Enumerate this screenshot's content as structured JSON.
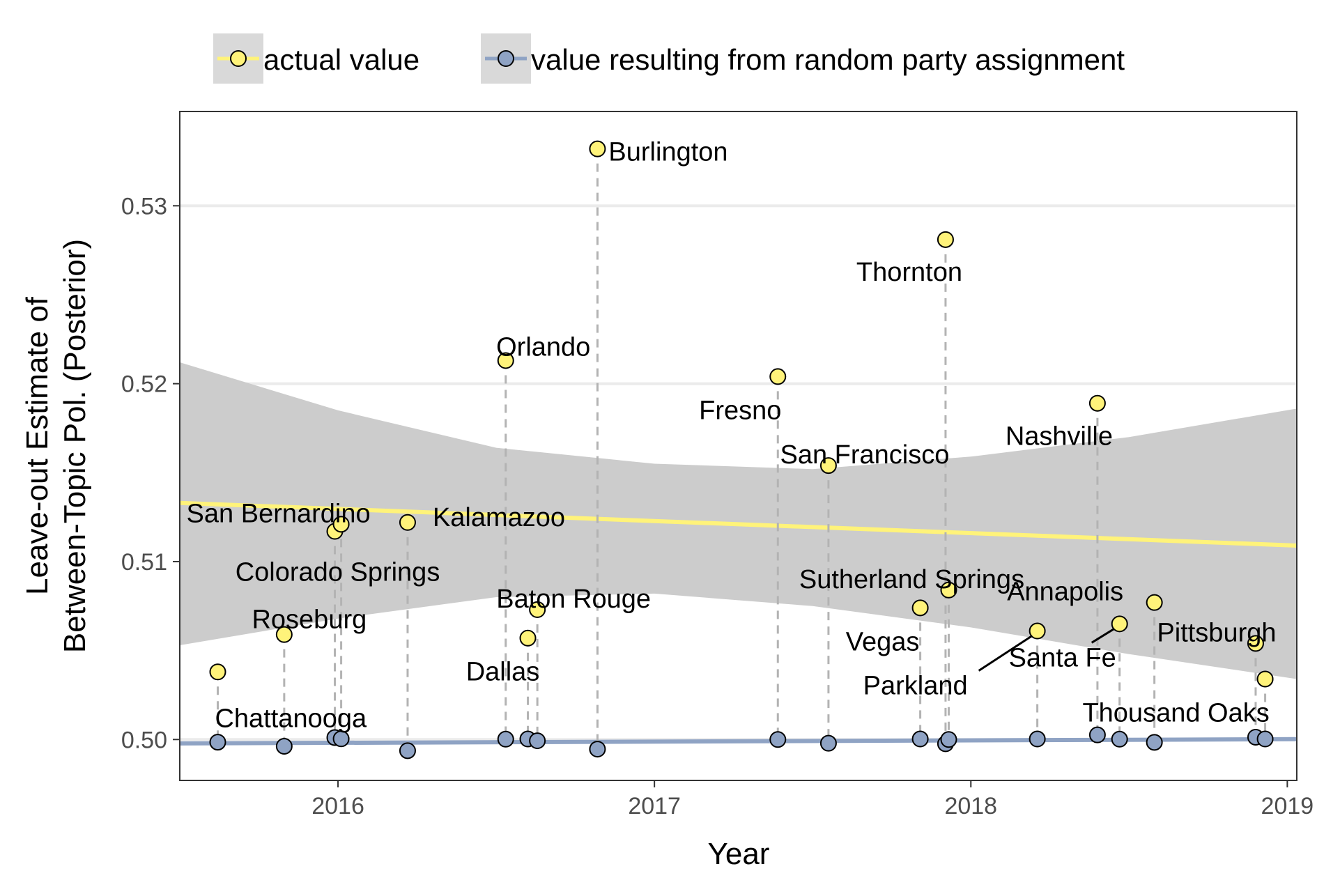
{
  "chart_data": {
    "type": "scatter",
    "xlabel": "Year",
    "ylabel_line1": "Leave-out Estimate of",
    "ylabel_line2": "Between-Topic Pol. (Posterior)",
    "xlim": [
      2015.5,
      2019.03
    ],
    "ylim": [
      0.4977,
      0.5353
    ],
    "x_ticks": [
      {
        "value": 2016,
        "label": "2016"
      },
      {
        "value": 2017,
        "label": "2017"
      },
      {
        "value": 2018,
        "label": "2018"
      },
      {
        "value": 2019,
        "label": "2019"
      }
    ],
    "y_ticks": [
      {
        "value": 0.5,
        "label": "0.50"
      },
      {
        "value": 0.51,
        "label": "0.51"
      },
      {
        "value": 0.52,
        "label": "0.52"
      },
      {
        "value": 0.53,
        "label": "0.53"
      }
    ],
    "grid": true,
    "legend_position": "top",
    "legend": [
      {
        "label": "actual value",
        "color": "#fff37a"
      },
      {
        "label": "value resulting from random party assignment",
        "color": "#8fa3c4"
      }
    ],
    "colors": {
      "actual": "#fff37a",
      "random": "#8fa3c4",
      "band": "#cccccc",
      "actual_trend": "#fff37a",
      "random_trend": "#8fa3c4",
      "drop_line": "#b3b3b3"
    },
    "actual_trend": {
      "x": [
        2015.5,
        2019.03
      ],
      "y": [
        0.5133,
        0.5109
      ]
    },
    "actual_band": {
      "x": [
        2015.5,
        2016.0,
        2016.5,
        2017.0,
        2017.5,
        2018.0,
        2018.5,
        2019.03
      ],
      "upper": [
        0.5212,
        0.5185,
        0.5164,
        0.5155,
        0.5152,
        0.5159,
        0.517,
        0.5186
      ],
      "lower": [
        0.5053,
        0.5068,
        0.508,
        0.5082,
        0.5075,
        0.5063,
        0.5048,
        0.5034
      ]
    },
    "random_trend": {
      "x": [
        2015.5,
        2019.03
      ],
      "y": [
        0.49978,
        0.50002
      ]
    },
    "series": [
      {
        "name": "actual value",
        "points": [
          {
            "label": "Chattanooga",
            "x": 2015.62,
            "y": 0.5038
          },
          {
            "label": "Roseburg",
            "x": 2015.83,
            "y": 0.5059
          },
          {
            "label": "Colorado Springs",
            "x": 2015.99,
            "y": 0.5117
          },
          {
            "label": "San Bernardino",
            "x": 2016.01,
            "y": 0.5121
          },
          {
            "label": "Kalamazoo",
            "x": 2016.22,
            "y": 0.5122
          },
          {
            "label": "Orlando",
            "x": 2016.53,
            "y": 0.5213
          },
          {
            "label": "Dallas",
            "x": 2016.6,
            "y": 0.5057
          },
          {
            "label": "Baton Rouge",
            "x": 2016.63,
            "y": 0.5073
          },
          {
            "label": "Burlington",
            "x": 2016.82,
            "y": 0.5332
          },
          {
            "label": "Fresno",
            "x": 2017.39,
            "y": 0.5204
          },
          {
            "label": "San Francisco",
            "x": 2017.55,
            "y": 0.5154
          },
          {
            "label": "Vegas",
            "x": 2017.84,
            "y": 0.5074
          },
          {
            "label": "Thornton",
            "x": 2017.92,
            "y": 0.5281
          },
          {
            "label": "Sutherland Springs",
            "x": 2017.93,
            "y": 0.5084
          },
          {
            "label": "Parkland",
            "x": 2018.21,
            "y": 0.5061
          },
          {
            "label": "Nashville",
            "x": 2018.4,
            "y": 0.5189
          },
          {
            "label": "Santa Fe",
            "x": 2018.47,
            "y": 0.5065
          },
          {
            "label": "Annapolis",
            "x": 2018.58,
            "y": 0.5077
          },
          {
            "label": "Pittsburgh",
            "x": 2018.9,
            "y": 0.5054
          },
          {
            "label": "Thousand Oaks",
            "x": 2018.93,
            "y": 0.5034
          }
        ]
      },
      {
        "name": "value resulting from random party assignment",
        "points": [
          {
            "x": 2015.62,
            "y": 0.49985
          },
          {
            "x": 2015.83,
            "y": 0.49962
          },
          {
            "x": 2015.99,
            "y": 0.50011
          },
          {
            "x": 2016.01,
            "y": 0.50004
          },
          {
            "x": 2016.22,
            "y": 0.49937
          },
          {
            "x": 2016.53,
            "y": 0.50002
          },
          {
            "x": 2016.6,
            "y": 0.50003
          },
          {
            "x": 2016.63,
            "y": 0.49993
          },
          {
            "x": 2016.82,
            "y": 0.49946
          },
          {
            "x": 2017.39,
            "y": 0.5
          },
          {
            "x": 2017.55,
            "y": 0.49979
          },
          {
            "x": 2017.84,
            "y": 0.50003
          },
          {
            "x": 2017.92,
            "y": 0.49976
          },
          {
            "x": 2017.93,
            "y": 0.5
          },
          {
            "x": 2018.21,
            "y": 0.50003
          },
          {
            "x": 2018.4,
            "y": 0.50026
          },
          {
            "x": 2018.47,
            "y": 0.50002
          },
          {
            "x": 2018.58,
            "y": 0.49984
          },
          {
            "x": 2018.9,
            "y": 0.50013
          },
          {
            "x": 2018.93,
            "y": 0.50003
          }
        ]
      }
    ]
  }
}
